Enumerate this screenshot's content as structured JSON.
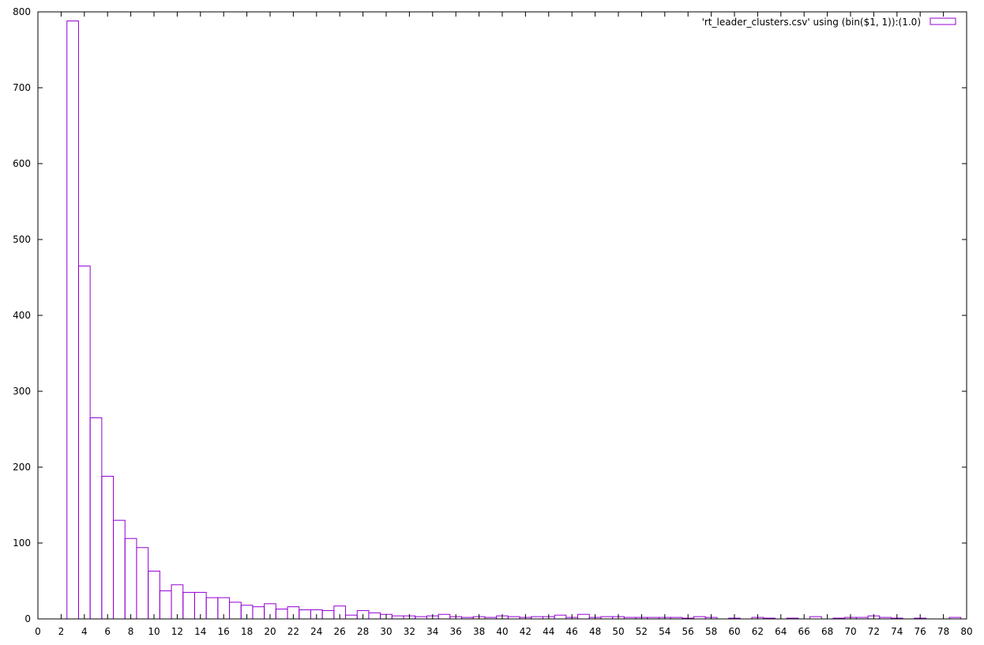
{
  "chart_data": {
    "type": "bar",
    "title": "",
    "xlabel": "",
    "ylabel": "",
    "xlim": [
      0,
      80
    ],
    "ylim": [
      0,
      800
    ],
    "grid": false,
    "bar_style": "outline",
    "color": "#9400d3",
    "x_ticks": [
      0,
      2,
      4,
      6,
      8,
      10,
      12,
      14,
      16,
      18,
      20,
      22,
      24,
      26,
      28,
      30,
      32,
      34,
      36,
      38,
      40,
      42,
      44,
      46,
      48,
      50,
      52,
      54,
      56,
      58,
      60,
      62,
      64,
      66,
      68,
      70,
      72,
      74,
      76,
      78,
      80
    ],
    "y_ticks": [
      0,
      100,
      200,
      300,
      400,
      500,
      600,
      700,
      800
    ],
    "series": [
      {
        "name": "'rt_leader_clusters.csv' using (bin($1, 1)):(1.0)",
        "bins": [
          {
            "x": 3,
            "y": 788
          },
          {
            "x": 4,
            "y": 465
          },
          {
            "x": 5,
            "y": 265
          },
          {
            "x": 6,
            "y": 188
          },
          {
            "x": 7,
            "y": 130
          },
          {
            "x": 8,
            "y": 106
          },
          {
            "x": 9,
            "y": 94
          },
          {
            "x": 10,
            "y": 63
          },
          {
            "x": 11,
            "y": 37
          },
          {
            "x": 12,
            "y": 45
          },
          {
            "x": 13,
            "y": 35
          },
          {
            "x": 14,
            "y": 35
          },
          {
            "x": 15,
            "y": 28
          },
          {
            "x": 16,
            "y": 28
          },
          {
            "x": 17,
            "y": 22
          },
          {
            "x": 18,
            "y": 18
          },
          {
            "x": 19,
            "y": 16
          },
          {
            "x": 20,
            "y": 20
          },
          {
            "x": 21,
            "y": 13
          },
          {
            "x": 22,
            "y": 16
          },
          {
            "x": 23,
            "y": 12
          },
          {
            "x": 24,
            "y": 12
          },
          {
            "x": 25,
            "y": 11
          },
          {
            "x": 26,
            "y": 17
          },
          {
            "x": 27,
            "y": 5
          },
          {
            "x": 28,
            "y": 11
          },
          {
            "x": 29,
            "y": 8
          },
          {
            "x": 30,
            "y": 6
          },
          {
            "x": 31,
            "y": 4
          },
          {
            "x": 32,
            "y": 4
          },
          {
            "x": 33,
            "y": 3
          },
          {
            "x": 34,
            "y": 4
          },
          {
            "x": 35,
            "y": 6
          },
          {
            "x": 36,
            "y": 3
          },
          {
            "x": 37,
            "y": 2
          },
          {
            "x": 38,
            "y": 3
          },
          {
            "x": 39,
            "y": 2
          },
          {
            "x": 40,
            "y": 4
          },
          {
            "x": 41,
            "y": 3
          },
          {
            "x": 42,
            "y": 2
          },
          {
            "x": 43,
            "y": 3
          },
          {
            "x": 44,
            "y": 3
          },
          {
            "x": 45,
            "y": 5
          },
          {
            "x": 46,
            "y": 2
          },
          {
            "x": 47,
            "y": 6
          },
          {
            "x": 48,
            "y": 2
          },
          {
            "x": 49,
            "y": 3
          },
          {
            "x": 50,
            "y": 3
          },
          {
            "x": 51,
            "y": 2
          },
          {
            "x": 52,
            "y": 2
          },
          {
            "x": 53,
            "y": 2
          },
          {
            "x": 54,
            "y": 2
          },
          {
            "x": 55,
            "y": 2
          },
          {
            "x": 56,
            "y": 1
          },
          {
            "x": 57,
            "y": 3
          },
          {
            "x": 58,
            "y": 2
          },
          {
            "x": 60,
            "y": 1
          },
          {
            "x": 62,
            "y": 2
          },
          {
            "x": 63,
            "y": 1
          },
          {
            "x": 65,
            "y": 1
          },
          {
            "x": 67,
            "y": 3
          },
          {
            "x": 69,
            "y": 1
          },
          {
            "x": 70,
            "y": 2
          },
          {
            "x": 71,
            "y": 2
          },
          {
            "x": 72,
            "y": 4
          },
          {
            "x": 73,
            "y": 2
          },
          {
            "x": 74,
            "y": 1
          },
          {
            "x": 76,
            "y": 1
          },
          {
            "x": 79,
            "y": 2
          }
        ]
      }
    ],
    "legend": {
      "position": "top-right"
    }
  }
}
